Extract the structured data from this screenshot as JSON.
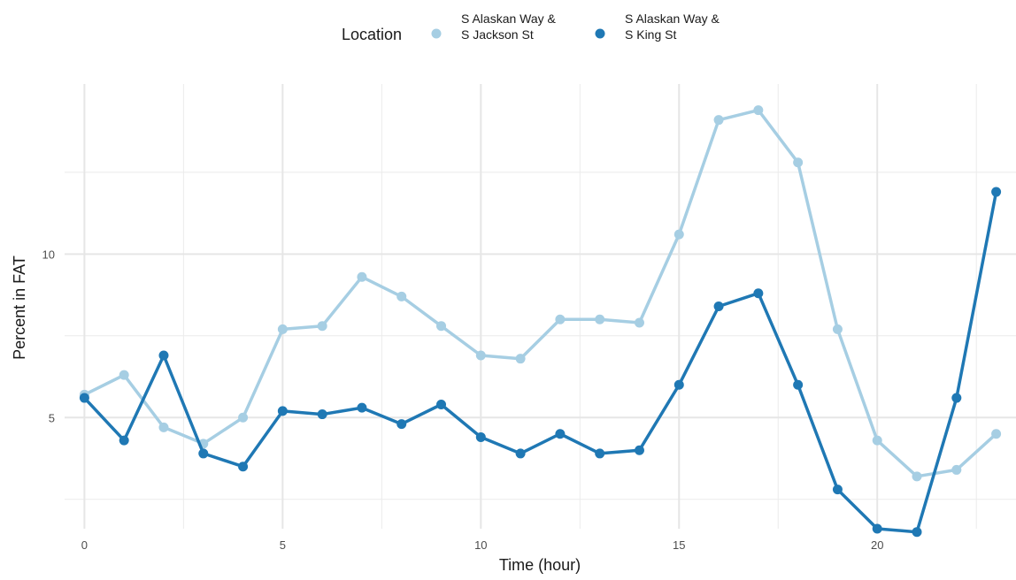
{
  "chart_data": {
    "type": "line",
    "xlabel": "Time (hour)",
    "ylabel": "Percent in FAT",
    "xlim": [
      -0.5,
      23.5
    ],
    "ylim": [
      1.6,
      15.2
    ],
    "x_ticks": [
      0,
      5,
      10,
      15,
      20
    ],
    "x_minor_ticks": [
      2.5,
      7.5,
      12.5,
      17.5,
      22.5
    ],
    "y_ticks": [
      5,
      10
    ],
    "y_minor_ticks": [
      2.5,
      7.5,
      12.5
    ],
    "grid": true,
    "legend": {
      "title": "Location",
      "placement": "top"
    },
    "x": [
      0,
      1,
      2,
      3,
      4,
      5,
      6,
      7,
      8,
      9,
      10,
      11,
      12,
      13,
      14,
      15,
      16,
      17,
      18,
      19,
      20,
      21,
      22,
      23
    ],
    "series": [
      {
        "name_lines": [
          "S Alaskan Way &",
          "S Jackson St"
        ],
        "color": "#a6cee3",
        "values": [
          5.7,
          6.3,
          4.7,
          4.2,
          5.0,
          7.7,
          7.8,
          9.3,
          8.7,
          7.8,
          6.9,
          6.8,
          8.0,
          8.0,
          7.9,
          10.6,
          14.1,
          14.4,
          12.8,
          7.7,
          4.3,
          3.2,
          3.4,
          4.5
        ]
      },
      {
        "name_lines": [
          "S Alaskan Way &",
          "S King St"
        ],
        "color": "#1f78b4",
        "values": [
          5.6,
          4.3,
          6.9,
          3.9,
          3.5,
          5.2,
          5.1,
          5.3,
          4.8,
          5.4,
          4.4,
          3.9,
          4.5,
          3.9,
          4.0,
          6.0,
          8.4,
          8.8,
          6.0,
          2.8,
          1.6,
          1.5,
          5.6,
          11.9
        ]
      }
    ]
  }
}
